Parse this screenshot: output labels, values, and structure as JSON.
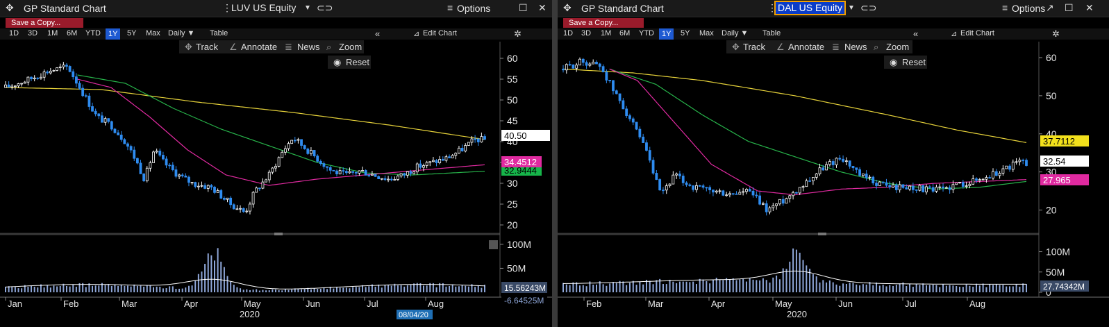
{
  "panels": [
    {
      "window_title": "GP Standard Chart",
      "ticker": "LUV US Equity",
      "options_label": "Options",
      "save_label": "Save a Copy...",
      "periods": [
        "1D",
        "3D",
        "1M",
        "6M",
        "YTD",
        "1Y",
        "5Y",
        "Max"
      ],
      "active_period": "1Y",
      "interval": "Daily ▼",
      "table_label": "Table",
      "edit_chart_label": "Edit Chart",
      "tools": [
        "Track",
        "Annotate",
        "News",
        "Zoom"
      ],
      "reset_label": "Reset",
      "price_ticks": [
        "60",
        "55",
        "50",
        "45",
        "40",
        "35",
        "30",
        "25",
        "20"
      ],
      "volume_ticks": [
        "100M",
        "50M"
      ],
      "x_months": [
        "Jan",
        "Feb",
        "Mar",
        "Apr",
        "May",
        "Jun",
        "Jul",
        "Aug"
      ],
      "x_year": "2020",
      "last_price": "40.50",
      "ma_label_1": "34.4512",
      "ma_label_2": "32.9444",
      "volume_label": "15.56243M",
      "volume_label_2": "-6.64525M",
      "date_marker": "08/04/20"
    },
    {
      "window_title": "GP Standard Chart",
      "ticker": "DAL US Equity",
      "options_label": "Options",
      "save_label": "Save a Copy...",
      "periods": [
        "1D",
        "3D",
        "1M",
        "6M",
        "YTD",
        "1Y",
        "5Y",
        "Max"
      ],
      "active_period": "1Y",
      "interval": "Daily ▼",
      "table_label": "Table",
      "edit_chart_label": "Edit Chart",
      "tools": [
        "Track",
        "Annotate",
        "News",
        "Zoom"
      ],
      "reset_label": "Reset",
      "price_ticks": [
        "60",
        "50",
        "40",
        "30",
        "20"
      ],
      "volume_ticks": [
        "100M",
        "50M",
        "0"
      ],
      "x_months": [
        "Feb",
        "Mar",
        "Apr",
        "May",
        "Jun",
        "Jul",
        "Aug"
      ],
      "x_year": "2020",
      "last_price": "32.54",
      "ma_label_1": "37.7112",
      "ma_label_2": "27.965",
      "volume_label": "27.74342M"
    }
  ],
  "colors": {
    "up": "#ffffff",
    "down": "#2f8cf0",
    "ma_200": "#e6d23a",
    "ma_100": "#27b34a",
    "ma_50": "#e02aa0",
    "volume": "#8ea6d8",
    "volume_avg": "#ffffff"
  },
  "chart_data": [
    {
      "type": "candlestick",
      "title": "LUV US Equity",
      "ylim": [
        19,
        62
      ],
      "x_range_months": [
        "Jan",
        "Aug"
      ],
      "series": [
        {
          "name": "Price",
          "points": [
            [
              0.0,
              53
            ],
            [
              0.05,
              55
            ],
            [
              0.09,
              57
            ],
            [
              0.13,
              58
            ],
            [
              0.16,
              52
            ],
            [
              0.19,
              46
            ],
            [
              0.22,
              44
            ],
            [
              0.25,
              40
            ],
            [
              0.27,
              36
            ],
            [
              0.29,
              31
            ],
            [
              0.31,
              38
            ],
            [
              0.33,
              35
            ],
            [
              0.36,
              32
            ],
            [
              0.39,
              30
            ],
            [
              0.43,
              29
            ],
            [
              0.47,
              25
            ],
            [
              0.5,
              23
            ],
            [
              0.52,
              28
            ],
            [
              0.55,
              32
            ],
            [
              0.58,
              38
            ],
            [
              0.6,
              41
            ],
            [
              0.62,
              39
            ],
            [
              0.65,
              36
            ],
            [
              0.68,
              33
            ],
            [
              0.71,
              32
            ],
            [
              0.74,
              33
            ],
            [
              0.77,
              32
            ],
            [
              0.8,
              31
            ],
            [
              0.83,
              32
            ],
            [
              0.86,
              34
            ],
            [
              0.89,
              35
            ],
            [
              0.92,
              36
            ],
            [
              0.95,
              38
            ],
            [
              0.98,
              40.5
            ]
          ]
        },
        {
          "name": "200D",
          "points": [
            [
              0,
              53
            ],
            [
              0.2,
              52.5
            ],
            [
              0.4,
              49.5
            ],
            [
              0.6,
              47
            ],
            [
              0.8,
              44
            ],
            [
              1,
              40.5
            ]
          ]
        },
        {
          "name": "100D",
          "points": [
            [
              0.15,
              56
            ],
            [
              0.25,
              54
            ],
            [
              0.35,
              48
            ],
            [
              0.45,
              43
            ],
            [
              0.55,
              39
            ],
            [
              0.65,
              35
            ],
            [
              0.75,
              32.5
            ],
            [
              0.85,
              32
            ],
            [
              1,
              32.9
            ]
          ]
        },
        {
          "name": "50D",
          "points": [
            [
              0.15,
              55
            ],
            [
              0.22,
              53
            ],
            [
              0.3,
              46
            ],
            [
              0.38,
              38
            ],
            [
              0.46,
              32
            ],
            [
              0.55,
              29.5
            ],
            [
              0.65,
              31
            ],
            [
              0.75,
              32
            ],
            [
              0.85,
              33
            ],
            [
              1,
              34.45
            ]
          ]
        }
      ],
      "volume_ylim": [
        0,
        110
      ],
      "volume_peak": [
        0.435,
        100
      ]
    },
    {
      "type": "candlestick",
      "title": "DAL US Equity",
      "ylim": [
        15,
        62
      ],
      "x_range_months": [
        "Feb",
        "Aug"
      ],
      "series": [
        {
          "name": "Price",
          "points": [
            [
              0.0,
              57
            ],
            [
              0.04,
              59
            ],
            [
              0.08,
              58
            ],
            [
              0.11,
              51
            ],
            [
              0.14,
              45
            ],
            [
              0.18,
              35
            ],
            [
              0.21,
              24
            ],
            [
              0.24,
              29
            ],
            [
              0.28,
              26
            ],
            [
              0.32,
              25
            ],
            [
              0.36,
              24
            ],
            [
              0.4,
              25
            ],
            [
              0.44,
              20
            ],
            [
              0.48,
              23
            ],
            [
              0.52,
              27
            ],
            [
              0.56,
              31
            ],
            [
              0.6,
              34
            ],
            [
              0.64,
              29
            ],
            [
              0.68,
              27
            ],
            [
              0.72,
              26
            ],
            [
              0.76,
              26
            ],
            [
              0.8,
              25
            ],
            [
              0.83,
              26
            ],
            [
              0.86,
              27
            ],
            [
              0.9,
              28
            ],
            [
              0.94,
              30
            ],
            [
              0.98,
              32.5
            ]
          ]
        },
        {
          "name": "200D",
          "points": [
            [
              0,
              57
            ],
            [
              0.15,
              56
            ],
            [
              0.3,
              54
            ],
            [
              0.5,
              50
            ],
            [
              0.7,
              45
            ],
            [
              0.85,
              41
            ],
            [
              1,
              37.7
            ]
          ]
        },
        {
          "name": "100D",
          "points": [
            [
              0.1,
              57
            ],
            [
              0.2,
              53
            ],
            [
              0.3,
              45
            ],
            [
              0.4,
              38
            ],
            [
              0.5,
              34
            ],
            [
              0.6,
              30
            ],
            [
              0.7,
              27
            ],
            [
              0.8,
              25.5
            ],
            [
              0.9,
              26
            ],
            [
              1,
              27.5
            ]
          ]
        },
        {
          "name": "50D",
          "points": [
            [
              0.1,
              57
            ],
            [
              0.16,
              54
            ],
            [
              0.24,
              43
            ],
            [
              0.32,
              32
            ],
            [
              0.42,
              25
            ],
            [
              0.5,
              24
            ],
            [
              0.6,
              25.5
            ],
            [
              0.7,
              26
            ],
            [
              0.8,
              27
            ],
            [
              1,
              28
            ]
          ]
        }
      ],
      "volume_ylim": [
        0,
        130
      ],
      "volume_peak": [
        0.505,
        125
      ]
    }
  ]
}
